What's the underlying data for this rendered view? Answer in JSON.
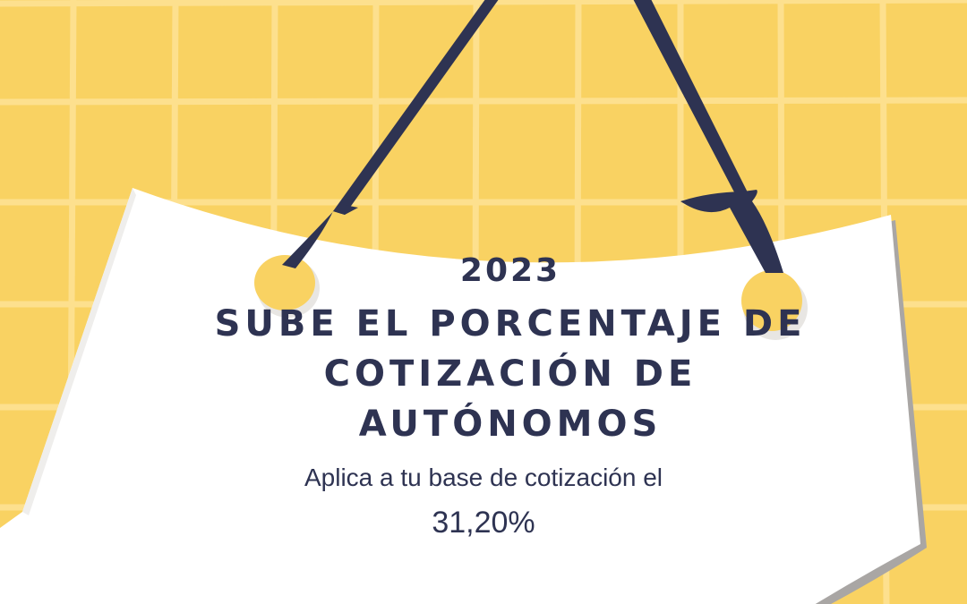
{
  "sign": {
    "year": "2023",
    "headline_lines": [
      "SUBE EL PORCENTAJE DE",
      "COTIZACIÓN DE",
      "AUTÓNOMOS"
    ],
    "subtitle": "Aplica a tu base de cotización el",
    "percentage": "31,20%"
  },
  "colors": {
    "background": "#F9D262",
    "grid": "#FDE08E",
    "sign": "#FFFFFF",
    "ribbon": "#2E3352",
    "text": "#2E3352"
  }
}
